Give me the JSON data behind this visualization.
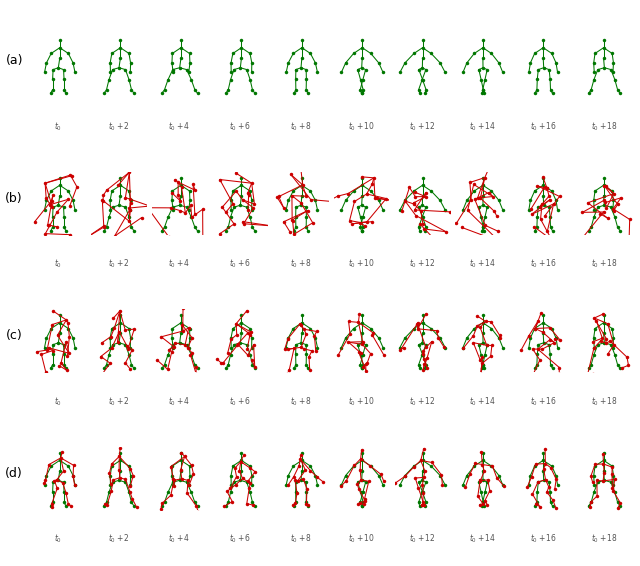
{
  "row_labels": [
    "(a)",
    "(b)",
    "(c)",
    "(d)"
  ],
  "time_labels": [
    "t_0",
    "t_0+2",
    "t_0+4",
    "t_0+6",
    "t_0+8",
    "t_0+10",
    "t_0+12",
    "t_0+14",
    "t_0+16",
    "t_0+18"
  ],
  "green_color": "#007700",
  "red_color": "#cc0000",
  "bg_color": "#ffffff",
  "num_cols": 10,
  "num_rows": 4,
  "fig_width": 6.4,
  "fig_height": 5.66,
  "dpi": 100,
  "noise_b": 0.18,
  "noise_c": 0.1,
  "noise_d": 0.05
}
